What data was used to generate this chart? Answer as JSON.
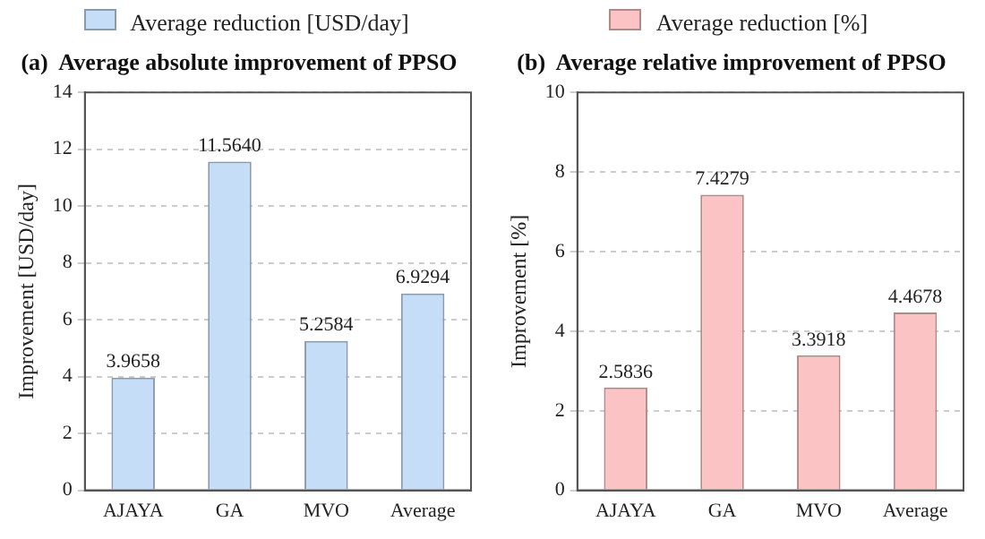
{
  "chart_data": [
    {
      "type": "bar",
      "title": "(a)  Average absolute improvement of PPSO",
      "ylabel": "Improvement [USD/day]",
      "categories": [
        "AJAYA",
        "GA",
        "MVO",
        "Average"
      ],
      "series": [
        {
          "name": "Average reduction [USD/day]",
          "color": "#c6ddf8",
          "values": [
            3.9658,
            11.564,
            5.2584,
            6.9294
          ],
          "value_labels": [
            "3.9658",
            "11.5640",
            "5.2584",
            "6.9294"
          ]
        }
      ],
      "ylim": [
        0,
        14
      ],
      "yticks": [
        0,
        2,
        4,
        6,
        8,
        10,
        12,
        14
      ],
      "grid": "y",
      "legend": "top"
    },
    {
      "type": "bar",
      "title": "(b)  Average relative improvement of PPSO",
      "ylabel": "Improvement [%]",
      "categories": [
        "AJAYA",
        "GA",
        "MVO",
        "Average"
      ],
      "series": [
        {
          "name": "Average reduction [%]",
          "color": "#fbc3c4",
          "values": [
            2.5836,
            7.4279,
            3.3918,
            4.4678
          ],
          "value_labels": [
            "2.5836",
            "7.4279",
            "3.3918",
            "4.4678"
          ]
        }
      ],
      "ylim": [
        0,
        10
      ],
      "yticks": [
        0,
        2,
        4,
        6,
        8,
        10
      ],
      "grid": "y",
      "legend": "top"
    }
  ]
}
